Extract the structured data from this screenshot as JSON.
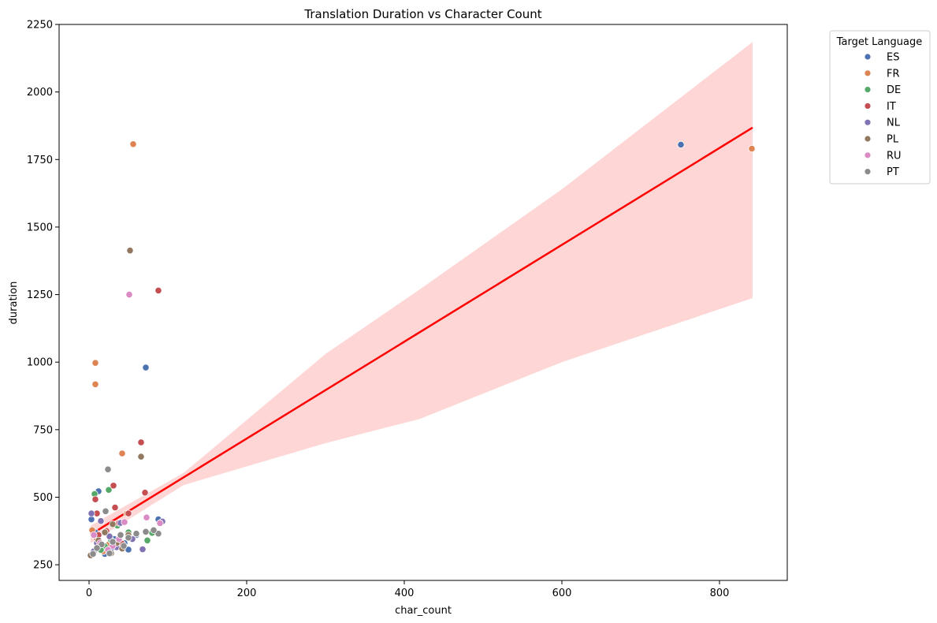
{
  "chart_data": {
    "type": "scatter",
    "title": "Translation Duration vs Character Count",
    "xlabel": "char_count",
    "ylabel": "duration",
    "xlim": [
      -38,
      886
    ],
    "ylim": [
      192,
      2250
    ],
    "xticks": [
      0,
      200,
      400,
      600,
      800
    ],
    "yticks": [
      250,
      500,
      750,
      1000,
      1250,
      1500,
      1750,
      2000,
      2250
    ],
    "grid": false,
    "legend": {
      "title": "Target Language",
      "placement": "outside-top-right"
    },
    "series": [
      {
        "name": "ES",
        "color": "#4c72b0",
        "points": [
          [
            751,
            1805
          ],
          [
            72,
            980
          ],
          [
            12,
            522
          ],
          [
            3,
            418
          ],
          [
            88,
            418
          ],
          [
            50,
            306
          ],
          [
            20,
            290
          ],
          [
            32,
            345
          ],
          [
            45,
            330
          ],
          [
            8,
            370
          ],
          [
            60,
            360
          ],
          [
            28,
            310
          ]
        ]
      },
      {
        "name": "FR",
        "color": "#dd8452",
        "points": [
          [
            841,
            1790
          ],
          [
            56,
            1807
          ],
          [
            8,
            997
          ],
          [
            8,
            918
          ],
          [
            42,
            662
          ],
          [
            72,
            370
          ],
          [
            10,
            345
          ],
          [
            4,
            378
          ],
          [
            25,
            325
          ],
          [
            48,
            440
          ],
          [
            18,
            300
          ]
        ]
      },
      {
        "name": "DE",
        "color": "#55a868",
        "points": [
          [
            25,
            527
          ],
          [
            7,
            512
          ],
          [
            74,
            340
          ],
          [
            12,
            318
          ],
          [
            36,
            395
          ],
          [
            20,
            318
          ],
          [
            50,
            370
          ],
          [
            80,
            368
          ],
          [
            28,
            340
          ],
          [
            15,
            305
          ]
        ]
      },
      {
        "name": "IT",
        "color": "#c44e52",
        "points": [
          [
            88,
            1265
          ],
          [
            66,
            703
          ],
          [
            31,
            543
          ],
          [
            71,
            517
          ],
          [
            8,
            492
          ],
          [
            33,
            462
          ],
          [
            10,
            440
          ],
          [
            38,
            405
          ],
          [
            50,
            440
          ],
          [
            22,
            375
          ],
          [
            12,
            360
          ],
          [
            42,
            328
          ]
        ]
      },
      {
        "name": "NL",
        "color": "#8172b3",
        "points": [
          [
            3,
            440
          ],
          [
            15,
            412
          ],
          [
            40,
            405
          ],
          [
            93,
            410
          ],
          [
            68,
            307
          ],
          [
            26,
            355
          ],
          [
            10,
            330
          ],
          [
            55,
            345
          ],
          [
            35,
            315
          ],
          [
            6,
            300
          ]
        ]
      },
      {
        "name": "PL",
        "color": "#937860",
        "points": [
          [
            52,
            1413
          ],
          [
            66,
            650
          ],
          [
            28,
            292
          ],
          [
            2,
            285
          ],
          [
            30,
            400
          ],
          [
            50,
            360
          ],
          [
            12,
            340
          ],
          [
            42,
            310
          ],
          [
            20,
            370
          ],
          [
            35,
            330
          ]
        ]
      },
      {
        "name": "RU",
        "color": "#da8bc3",
        "points": [
          [
            51,
            1250
          ],
          [
            73,
            425
          ],
          [
            45,
            408
          ],
          [
            90,
            404
          ],
          [
            30,
            320
          ],
          [
            14,
            330
          ],
          [
            24,
            305
          ],
          [
            6,
            360
          ],
          [
            38,
            345
          ]
        ]
      },
      {
        "name": "PT",
        "color": "#8c8c8c",
        "points": [
          [
            24,
            603
          ],
          [
            21,
            448
          ],
          [
            60,
            365
          ],
          [
            88,
            365
          ],
          [
            82,
            378
          ],
          [
            50,
            350
          ],
          [
            30,
            335
          ],
          [
            16,
            325
          ],
          [
            40,
            360
          ],
          [
            72,
            372
          ],
          [
            44,
            320
          ],
          [
            10,
            312
          ],
          [
            5,
            290
          ],
          [
            26,
            292
          ]
        ]
      }
    ],
    "regression": {
      "color": "#ff0000",
      "band_color": "#ffd6d6",
      "line": [
        [
          2,
          362
        ],
        [
          842,
          1868
        ]
      ],
      "band_upper": [
        [
          2,
          395
        ],
        [
          120,
          590
        ],
        [
          300,
          1030
        ],
        [
          420,
          1270
        ],
        [
          600,
          1640
        ],
        [
          842,
          2185
        ]
      ],
      "band_lower": [
        [
          2,
          330
        ],
        [
          120,
          545
        ],
        [
          300,
          700
        ],
        [
          420,
          790
        ],
        [
          600,
          1000
        ],
        [
          842,
          1237
        ]
      ]
    }
  }
}
